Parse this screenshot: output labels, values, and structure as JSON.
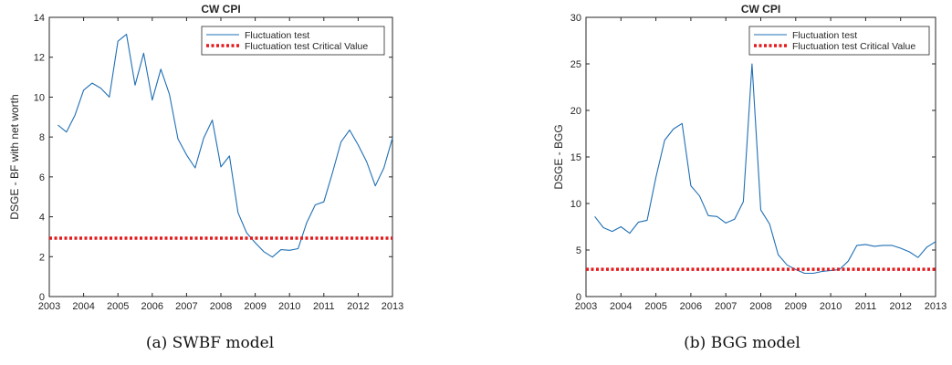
{
  "captions": [
    "(a) SWBF model",
    "(b) BGG model"
  ],
  "colors": {
    "series": "#1f6fb4",
    "critical": "#e41a1c",
    "axis": "#262626"
  },
  "chart_data": [
    {
      "type": "line",
      "title": "CW CPI",
      "xlabel": "",
      "ylabel": "DSGE - BF with net worth",
      "xlim": [
        2003,
        2013
      ],
      "ylim": [
        0,
        14
      ],
      "xticks": [
        2003,
        2004,
        2005,
        2006,
        2007,
        2008,
        2009,
        2010,
        2011,
        2012,
        2013
      ],
      "yticks": [
        0,
        2,
        4,
        6,
        8,
        10,
        12,
        14
      ],
      "legend_position": "top-right",
      "series": [
        {
          "name": "Fluctuation test",
          "style": "solid",
          "x": [
            2003.25,
            2003.5,
            2003.75,
            2004,
            2004.25,
            2004.5,
            2004.75,
            2005,
            2005.25,
            2005.5,
            2005.75,
            2006,
            2006.25,
            2006.5,
            2006.75,
            2007,
            2007.25,
            2007.5,
            2007.75,
            2008,
            2008.25,
            2008.5,
            2008.75,
            2009,
            2009.25,
            2009.5,
            2009.75,
            2010,
            2010.25,
            2010.5,
            2010.75,
            2011,
            2011.25,
            2011.5,
            2011.75,
            2012,
            2012.25,
            2012.5,
            2012.75,
            2013
          ],
          "y": [
            8.6,
            8.25,
            9.1,
            10.35,
            10.7,
            10.45,
            10.0,
            12.8,
            13.15,
            10.6,
            12.2,
            9.85,
            11.4,
            10.15,
            7.9,
            7.1,
            6.45,
            7.95,
            8.85,
            6.5,
            7.05,
            4.2,
            3.2,
            2.7,
            2.25,
            1.98,
            2.35,
            2.32,
            2.4,
            3.7,
            4.6,
            4.75,
            6.2,
            7.75,
            8.35,
            7.6,
            6.75,
            5.55,
            6.45,
            7.95
          ]
        },
        {
          "name": "Fluctuation test Critical Value",
          "style": "dotted",
          "x": [
            2003,
            2013
          ],
          "y": [
            2.93,
            2.93
          ]
        }
      ]
    },
    {
      "type": "line",
      "title": "CW CPI",
      "xlabel": "",
      "ylabel": "DSGE - BGG",
      "xlim": [
        2003,
        2013
      ],
      "ylim": [
        0,
        30
      ],
      "xticks": [
        2003,
        2004,
        2005,
        2006,
        2007,
        2008,
        2009,
        2010,
        2011,
        2012,
        2013
      ],
      "yticks": [
        0,
        5,
        10,
        15,
        20,
        25,
        30
      ],
      "legend_position": "top-right",
      "series": [
        {
          "name": "Fluctuation test",
          "style": "solid",
          "x": [
            2003.25,
            2003.5,
            2003.75,
            2004,
            2004.25,
            2004.5,
            2004.75,
            2005,
            2005.25,
            2005.5,
            2005.75,
            2006,
            2006.25,
            2006.5,
            2006.75,
            2007,
            2007.25,
            2007.5,
            2007.75,
            2008,
            2008.25,
            2008.5,
            2008.75,
            2009,
            2009.25,
            2009.5,
            2009.75,
            2010,
            2010.25,
            2010.5,
            2010.75,
            2011,
            2011.25,
            2011.5,
            2011.75,
            2012,
            2012.25,
            2012.5,
            2012.75,
            2013
          ],
          "y": [
            8.6,
            7.4,
            7.0,
            7.5,
            6.8,
            8.0,
            8.2,
            12.8,
            16.8,
            18.0,
            18.6,
            11.9,
            10.8,
            8.7,
            8.6,
            7.9,
            8.3,
            10.2,
            25.0,
            9.3,
            7.8,
            4.5,
            3.4,
            2.9,
            2.5,
            2.5,
            2.7,
            2.8,
            2.9,
            3.8,
            5.5,
            5.6,
            5.4,
            5.5,
            5.5,
            5.2,
            4.8,
            4.2,
            5.3,
            5.9
          ]
        },
        {
          "name": "Fluctuation test Critical Value",
          "style": "dotted",
          "x": [
            2003,
            2013
          ],
          "y": [
            2.93,
            2.93
          ]
        }
      ]
    }
  ]
}
